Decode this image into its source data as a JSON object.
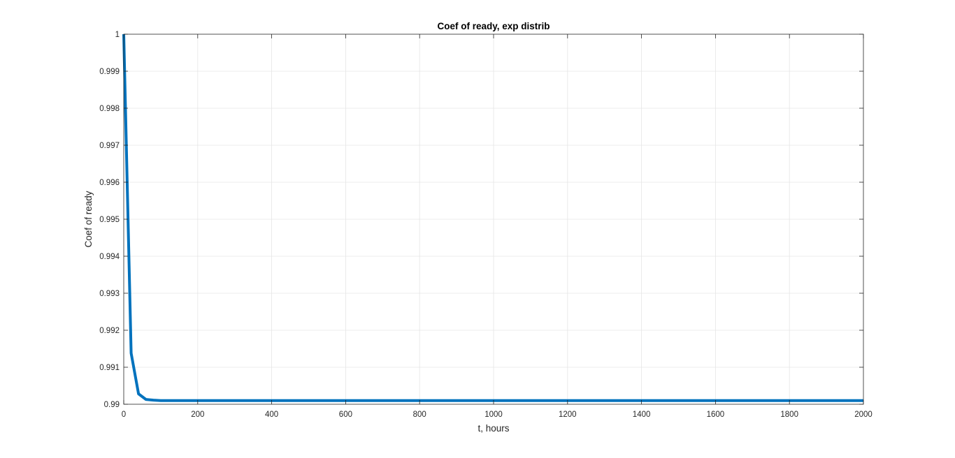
{
  "chart_data": {
    "type": "line",
    "title": "Coef of ready, exp distrib",
    "xlabel": "t, hours",
    "ylabel": "Coef of ready",
    "xlim": [
      0,
      2000
    ],
    "ylim": [
      0.99,
      1
    ],
    "x_ticks": [
      0,
      200,
      400,
      600,
      800,
      1000,
      1200,
      1400,
      1600,
      1800,
      2000
    ],
    "x_tick_labels": [
      "0",
      "200",
      "400",
      "600",
      "800",
      "1000",
      "1200",
      "1400",
      "1600",
      "1800",
      "2000"
    ],
    "y_ticks": [
      0.99,
      0.991,
      0.992,
      0.993,
      0.994,
      0.995,
      0.996,
      0.997,
      0.998,
      0.999,
      1
    ],
    "y_tick_labels": [
      "0.99",
      "0.991",
      "0.992",
      "0.993",
      "0.994",
      "0.995",
      "0.996",
      "0.997",
      "0.998",
      "0.999",
      "1"
    ],
    "grid": true,
    "legend": "none",
    "series": [
      {
        "color": "#0072BD",
        "x": [
          0,
          20,
          40,
          60,
          80,
          100,
          200,
          400,
          600,
          800,
          1000,
          1200,
          1400,
          1600,
          1800,
          2000
        ],
        "y": [
          1.0,
          0.99138,
          0.99028,
          0.99013,
          0.99011,
          0.9901,
          0.9901,
          0.9901,
          0.9901,
          0.9901,
          0.9901,
          0.9901,
          0.9901,
          0.9901,
          0.9901,
          0.9901
        ]
      }
    ]
  }
}
